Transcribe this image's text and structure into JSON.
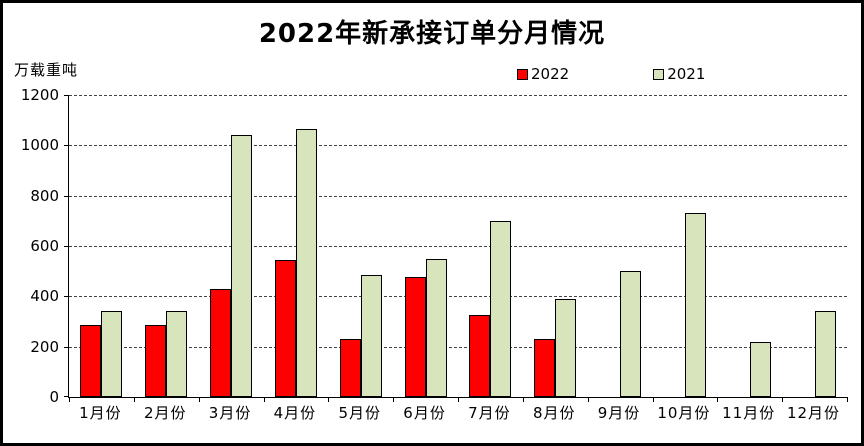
{
  "chart_data": {
    "type": "bar",
    "title": "2022年新承接订单分月情况",
    "ylabel": "万载重吨",
    "xlabel": "",
    "categories": [
      "1月份",
      "2月份",
      "3月份",
      "4月份",
      "5月份",
      "6月份",
      "7月份",
      "8月份",
      "9月份",
      "10月份",
      "11月份",
      "12月份"
    ],
    "series": [
      {
        "name": "2022",
        "color": "#FF0000",
        "values": [
          285,
          285,
          430,
          545,
          230,
          475,
          325,
          230,
          null,
          null,
          null,
          null
        ]
      },
      {
        "name": "2021",
        "color": "#D7E4BC",
        "values": [
          340,
          340,
          1040,
          1065,
          485,
          550,
          700,
          390,
          500,
          730,
          220,
          340
        ]
      }
    ],
    "ylim": [
      0,
      1200
    ],
    "ytick_interval": 200,
    "grid": true,
    "gridline_style": "dashed",
    "gridline_color": "#444444",
    "bar_border_color": "#000000",
    "legend_position": "top"
  }
}
